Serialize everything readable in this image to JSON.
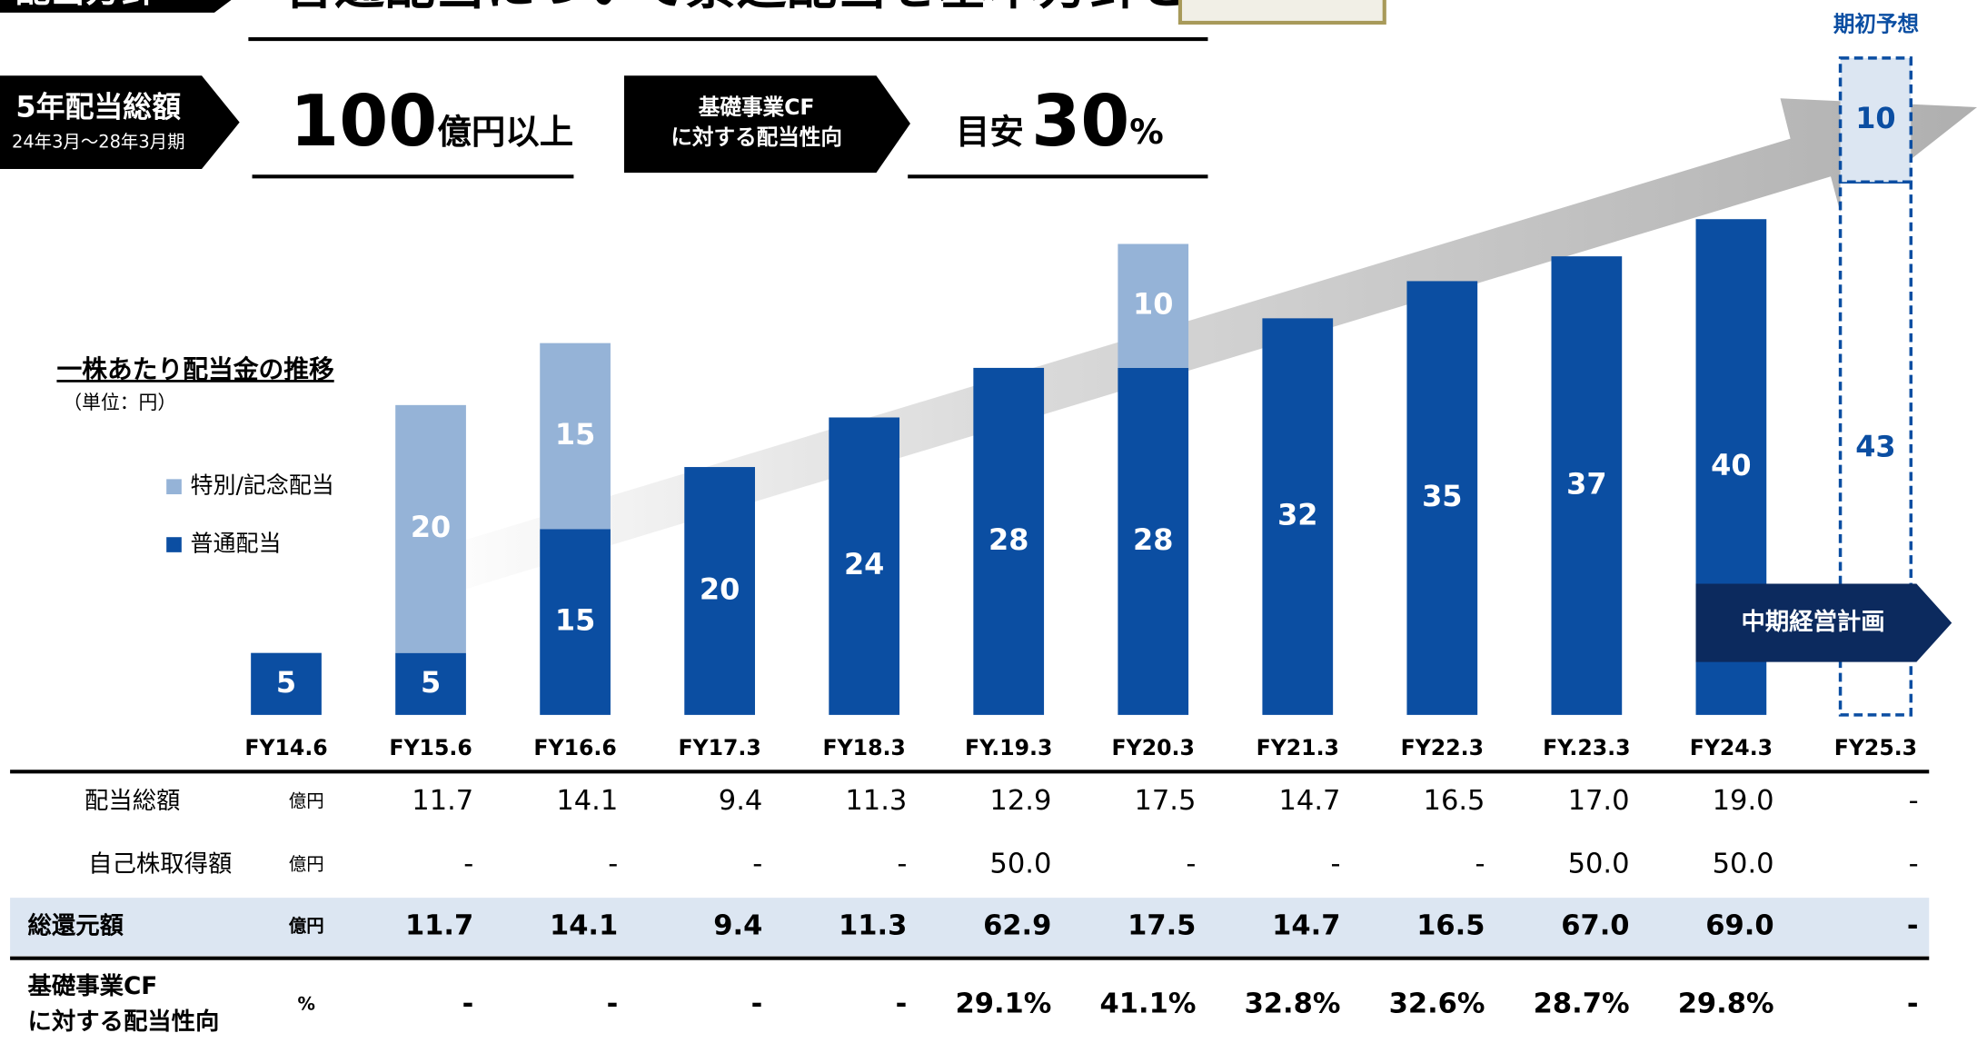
{
  "header": {
    "section": "配当方針",
    "policy": "普通配当について累進配当を基本方針とする"
  },
  "highlights": {
    "total_label": "5年配当総額",
    "total_period": "24年3月～28年3月期",
    "total_value": "100",
    "total_unit": "億円以上",
    "payout_label": [
      "基礎事業CF",
      "に対する配当性向"
    ],
    "payout_prefix": "目安",
    "payout_value": "30",
    "payout_unit": "%"
  },
  "chart_data": {
    "type": "stacked_bar",
    "title": "一株あたり配当金の推移",
    "subtitle": "（単位：円）",
    "categories": [
      "FY14.6",
      "FY15.6",
      "FY16.6",
      "FY17.3",
      "FY18.3",
      "FY.19.3",
      "FY20.3",
      "FY21.3",
      "FY22.3",
      "FY.23.3",
      "FY24.3",
      "FY25.3"
    ],
    "series": [
      {
        "name": "普通配当",
        "color": "#0b4ea2",
        "values": [
          5,
          5,
          15,
          20,
          24,
          28,
          28,
          32,
          35,
          37,
          40,
          43
        ]
      },
      {
        "name": "特別/記念配当",
        "color": "#95b3d7",
        "values": [
          null,
          20,
          15,
          null,
          null,
          null,
          10,
          null,
          null,
          null,
          null,
          10
        ]
      }
    ],
    "forecast_label": "期初予想",
    "plan_label": "中期経営計画"
  },
  "table": {
    "rows": [
      {
        "label": "配当総額",
        "unit": "億円",
        "values": [
          "11.7",
          "14.1",
          "9.4",
          "11.3",
          "12.9",
          "17.5",
          "14.7",
          "16.5",
          "17.0",
          "19.0",
          "-"
        ]
      },
      {
        "label": "自己株取得額",
        "unit": "億円",
        "values": [
          "-",
          "-",
          "-",
          "-",
          "50.0",
          "-",
          "-",
          "-",
          "50.0",
          "50.0",
          "-"
        ]
      },
      {
        "label": "総還元額",
        "unit": "億円",
        "values": [
          "11.7",
          "14.1",
          "9.4",
          "11.3",
          "62.9",
          "17.5",
          "14.7",
          "16.5",
          "67.0",
          "69.0",
          "-"
        ]
      },
      {
        "label": [
          "基礎事業CF",
          "に対する配当性向"
        ],
        "unit": "%",
        "values": [
          "-",
          "-",
          "-",
          "-",
          "29.1%",
          "41.1%",
          "32.8%",
          "32.6%",
          "28.7%",
          "29.8%",
          "-"
        ]
      }
    ]
  }
}
